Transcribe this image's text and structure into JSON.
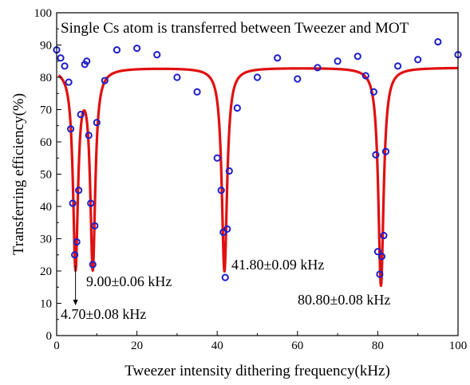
{
  "chart_data": {
    "type": "scatter",
    "title": "Single Cs atom is transferred between Tweezer and MOT",
    "xlabel": "Tweezer intensity dithering frequency(kHz)",
    "ylabel": "Transferring efficiency(%)",
    "xlim": [
      0,
      100
    ],
    "ylim": [
      0,
      100
    ],
    "x_ticks": [
      0,
      20,
      40,
      60,
      80,
      100
    ],
    "y_ticks": [
      0,
      10,
      20,
      30,
      40,
      50,
      60,
      70,
      80,
      90,
      100
    ],
    "grid": false,
    "colors": {
      "points": "#1f1fc8",
      "fit": "#e01010"
    },
    "series": [
      {
        "kind": "points",
        "marker": "open-circle",
        "x": [
          0,
          1,
          2,
          3,
          3.5,
          4,
          4.5,
          5,
          5.5,
          6,
          7,
          7.5,
          8,
          8.5,
          9,
          9.5,
          10,
          12,
          15,
          20,
          25,
          30,
          35,
          40,
          41,
          41.5,
          42,
          42.5,
          43,
          45,
          50,
          55,
          60,
          65,
          70,
          75,
          77,
          79,
          79.5,
          80,
          80.5,
          81,
          81.5,
          82,
          85,
          90,
          95,
          100
        ],
        "y": [
          88.5,
          86,
          83.5,
          78.5,
          64,
          41,
          25,
          29,
          45,
          68.5,
          84,
          85,
          62,
          41,
          22,
          34,
          66,
          79,
          88.5,
          89,
          87,
          80,
          75.5,
          55,
          45,
          32,
          18,
          33,
          51,
          70.5,
          80,
          86,
          79.5,
          83,
          85,
          86.5,
          80.5,
          75.5,
          56,
          26,
          19,
          24.5,
          31,
          57,
          83.5,
          85.5,
          91,
          87
        ]
      },
      {
        "kind": "fit",
        "baseline": 83,
        "dips": [
          {
            "center": 4.7,
            "depth": 61,
            "width": 0.75
          },
          {
            "center": 9.0,
            "depth": 61,
            "width": 0.75
          },
          {
            "center": 41.8,
            "depth": 63,
            "width": 0.8
          },
          {
            "center": 80.8,
            "depth": 67.5,
            "width": 0.8
          }
        ]
      }
    ],
    "annotations": [
      {
        "text": "9.00±0.06 kHz"
      },
      {
        "text": "41.80±0.09 kHz"
      },
      {
        "text": "80.80±0.08 kHz"
      },
      {
        "text": "4.70±0.08 kHz"
      }
    ]
  }
}
